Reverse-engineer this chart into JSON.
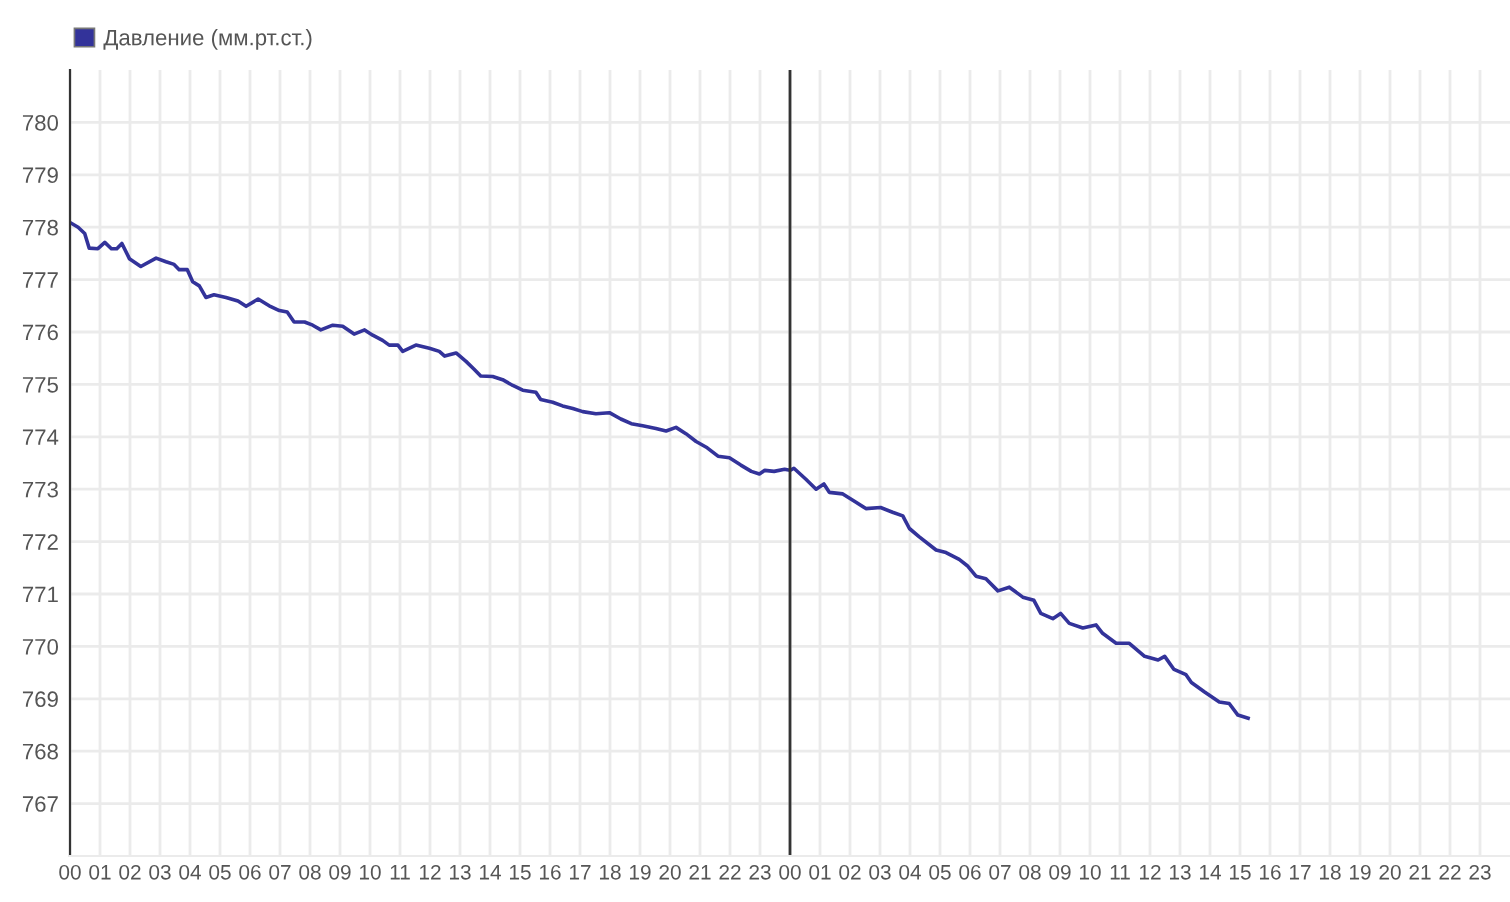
{
  "chart_data": {
    "type": "line",
    "legend": "top left",
    "grid": true,
    "marker": "none",
    "line_style": "solid",
    "x": [
      0,
      0.27,
      0.49,
      0.64,
      0.93,
      1.16,
      1.38,
      1.56,
      1.73,
      1.98,
      2.36,
      2.87,
      3.2,
      3.47,
      3.64,
      3.91,
      4.09,
      4.31,
      4.53,
      4.8,
      5.2,
      5.6,
      5.87,
      6.27,
      6.64,
      6.98,
      7.24,
      7.47,
      7.82,
      8.09,
      8.36,
      8.76,
      9.09,
      9.47,
      9.82,
      10.09,
      10.42,
      10.64,
      10.93,
      11.09,
      11.53,
      11.98,
      12.31,
      12.49,
      12.87,
      13.2,
      13.47,
      13.69,
      14.09,
      14.42,
      14.76,
      15.09,
      15.53,
      15.69,
      16.09,
      16.42,
      16.76,
      17.09,
      17.53,
      17.98,
      18.36,
      18.71,
      19.09,
      19.53,
      19.87,
      20.2,
      20.53,
      20.87,
      21.24,
      21.6,
      21.98,
      22.36,
      22.71,
      22.98,
      23.16,
      23.47,
      23.82,
      24,
      24.13,
      24.53,
      24.87,
      25.13,
      25.31,
      25.76,
      26.2,
      26.53,
      27.02,
      27.42,
      27.76,
      27.98,
      28.31,
      28.87,
      29.2,
      29.64,
      29.91,
      30.2,
      30.53,
      30.93,
      31.31,
      31.76,
      32.13,
      32.36,
      32.76,
      33.02,
      33.31,
      33.76,
      34.2,
      34.42,
      34.87,
      35.31,
      35.82,
      36.27,
      36.49,
      36.8,
      37.2,
      37.38,
      37.82,
      38.31,
      38.64,
      38.93,
      39.27
    ],
    "series": [
      {
        "name": "Давление (мм.рт.ст.)",
        "color": "#33339a",
        "values": [
          778.09,
          778.0,
          777.88,
          777.6,
          777.59,
          777.71,
          777.59,
          777.59,
          777.69,
          777.4,
          777.25,
          777.41,
          777.34,
          777.29,
          777.19,
          777.19,
          776.96,
          776.88,
          776.66,
          776.71,
          776.66,
          776.59,
          776.49,
          776.63,
          776.5,
          776.41,
          776.38,
          776.19,
          776.19,
          776.13,
          776.04,
          776.13,
          776.11,
          775.96,
          776.04,
          775.94,
          775.84,
          775.75,
          775.75,
          775.63,
          775.75,
          775.69,
          775.63,
          775.54,
          775.6,
          775.44,
          775.29,
          775.16,
          775.15,
          775.09,
          774.98,
          774.89,
          774.85,
          774.71,
          774.66,
          774.59,
          774.54,
          774.48,
          774.44,
          774.46,
          774.34,
          774.25,
          774.21,
          774.16,
          774.11,
          774.18,
          774.06,
          773.91,
          773.79,
          773.63,
          773.6,
          773.46,
          773.34,
          773.29,
          773.36,
          773.34,
          773.38,
          773.36,
          773.4,
          773.19,
          773.0,
          773.1,
          772.94,
          772.91,
          772.75,
          772.63,
          772.65,
          772.56,
          772.49,
          772.25,
          772.09,
          771.84,
          771.79,
          771.66,
          771.54,
          771.34,
          771.29,
          771.06,
          771.13,
          770.94,
          770.88,
          770.63,
          770.53,
          770.63,
          770.44,
          770.35,
          770.41,
          770.25,
          770.06,
          770.06,
          769.81,
          769.74,
          769.81,
          769.56,
          769.46,
          769.31,
          769.13,
          768.94,
          768.91,
          768.69,
          768.63
        ]
      }
    ],
    "xlim": [
      0,
      48
    ],
    "xticks": [
      {
        "value": 0,
        "label": "00"
      },
      {
        "value": 1,
        "label": "01"
      },
      {
        "value": 2,
        "label": "02"
      },
      {
        "value": 3,
        "label": "03"
      },
      {
        "value": 4,
        "label": "04"
      },
      {
        "value": 5,
        "label": "05"
      },
      {
        "value": 6,
        "label": "06"
      },
      {
        "value": 7,
        "label": "07"
      },
      {
        "value": 8,
        "label": "08"
      },
      {
        "value": 9,
        "label": "09"
      },
      {
        "value": 10,
        "label": "10"
      },
      {
        "value": 11,
        "label": "11"
      },
      {
        "value": 12,
        "label": "12"
      },
      {
        "value": 13,
        "label": "13"
      },
      {
        "value": 14,
        "label": "14"
      },
      {
        "value": 15,
        "label": "15"
      },
      {
        "value": 16,
        "label": "16"
      },
      {
        "value": 17,
        "label": "17"
      },
      {
        "value": 18,
        "label": "18"
      },
      {
        "value": 19,
        "label": "19"
      },
      {
        "value": 20,
        "label": "20"
      },
      {
        "value": 21,
        "label": "21"
      },
      {
        "value": 22,
        "label": "22"
      },
      {
        "value": 23,
        "label": "23"
      },
      {
        "value": 24,
        "label": "00"
      },
      {
        "value": 25,
        "label": "01"
      },
      {
        "value": 26,
        "label": "02"
      },
      {
        "value": 27,
        "label": "03"
      },
      {
        "value": 28,
        "label": "04"
      },
      {
        "value": 29,
        "label": "05"
      },
      {
        "value": 30,
        "label": "06"
      },
      {
        "value": 31,
        "label": "07"
      },
      {
        "value": 32,
        "label": "08"
      },
      {
        "value": 33,
        "label": "09"
      },
      {
        "value": 34,
        "label": "10"
      },
      {
        "value": 35,
        "label": "11"
      },
      {
        "value": 36,
        "label": "12"
      },
      {
        "value": 37,
        "label": "13"
      },
      {
        "value": 38,
        "label": "14"
      },
      {
        "value": 39,
        "label": "15"
      },
      {
        "value": 40,
        "label": "16"
      },
      {
        "value": 41,
        "label": "17"
      },
      {
        "value": 42,
        "label": "18"
      },
      {
        "value": 43,
        "label": "19"
      },
      {
        "value": 44,
        "label": "20"
      },
      {
        "value": 45,
        "label": "21"
      },
      {
        "value": 46,
        "label": "22"
      },
      {
        "value": 47,
        "label": "23"
      }
    ],
    "ylim": [
      766,
      781
    ],
    "yticks": [
      767,
      768,
      769,
      770,
      771,
      772,
      773,
      774,
      775,
      776,
      777,
      778,
      779,
      780
    ],
    "ref_lines": [
      {
        "axis": "x",
        "value": 24,
        "label": null,
        "color": "#333333"
      }
    ]
  }
}
